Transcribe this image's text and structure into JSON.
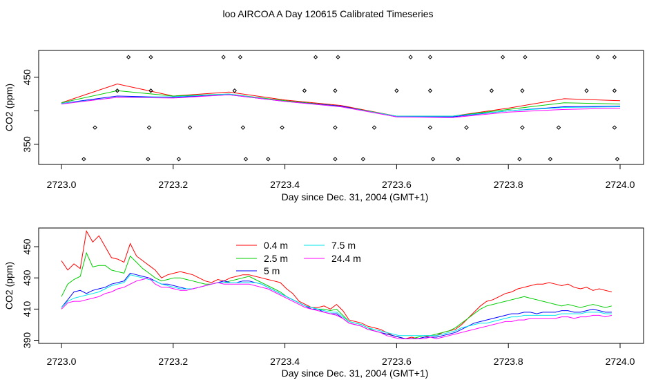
{
  "title": "loo AIRCOA A  Day 120615  Calibrated Timeseries",
  "colors": {
    "0.4 m": "#ff0000",
    "2.5 m": "#00cd00",
    "5 m": "#0000ff",
    "7.5 m": "#00e5ee",
    "24.4 m": "#ff00ff"
  },
  "chart_data": [
    {
      "type": "line",
      "xlabel": "Day since Dec. 31, 2004 (GMT+1)",
      "ylabel": "CO2 (ppm)",
      "xlim": [
        2723.0,
        2724.0
      ],
      "ylim": [
        320,
        490
      ],
      "xticks": [
        "2723.0",
        "2723.2",
        "2723.4",
        "2723.6",
        "2723.8",
        "2724.0"
      ],
      "yticks": [
        "350",
        "",
        "450"
      ],
      "ytick_values": [
        350,
        400,
        450
      ],
      "series": [
        {
          "name": "0.4 m",
          "x": [
            2723.0,
            2723.1,
            2723.2,
            2723.3,
            2723.4,
            2723.5,
            2723.6,
            2723.7,
            2723.8,
            2723.9,
            2724.0
          ],
          "y": [
            412,
            440,
            422,
            428,
            416,
            408,
            392,
            392,
            404,
            418,
            415
          ]
        },
        {
          "name": "2.5 m",
          "x": [
            2723.0,
            2723.1,
            2723.2,
            2723.3,
            2723.4,
            2723.5,
            2723.6,
            2723.7,
            2723.8,
            2723.9,
            2724.0
          ],
          "y": [
            412,
            430,
            422,
            425,
            415,
            407,
            392,
            392,
            402,
            412,
            410
          ]
        },
        {
          "name": "5 m",
          "x": [
            2723.0,
            2723.1,
            2723.2,
            2723.3,
            2723.4,
            2723.5,
            2723.6,
            2723.7,
            2723.8,
            2723.9,
            2724.0
          ],
          "y": [
            411,
            422,
            420,
            424,
            414,
            407,
            391,
            391,
            400,
            406,
            407
          ]
        },
        {
          "name": "7.5 m",
          "x": [
            2723.0,
            2723.1,
            2723.2,
            2723.3,
            2723.4,
            2723.5,
            2723.6,
            2723.7,
            2723.8,
            2723.9,
            2724.0
          ],
          "y": [
            411,
            420,
            421,
            425,
            414,
            406,
            392,
            392,
            400,
            405,
            406
          ]
        },
        {
          "name": "24.4 m",
          "x": [
            2723.0,
            2723.1,
            2723.2,
            2723.3,
            2723.4,
            2723.5,
            2723.6,
            2723.7,
            2723.8,
            2723.9,
            2724.0
          ],
          "y": [
            410,
            420,
            419,
            424,
            414,
            406,
            391,
            390,
            398,
            402,
            404
          ]
        }
      ],
      "flag_points": [
        {
          "x": 2723.04,
          "y": 328
        },
        {
          "x": 2723.06,
          "y": 375
        },
        {
          "x": 2723.1,
          "y": 430
        },
        {
          "x": 2723.12,
          "y": 480
        },
        {
          "x": 2723.155,
          "y": 328
        },
        {
          "x": 2723.157,
          "y": 375
        },
        {
          "x": 2723.16,
          "y": 430
        },
        {
          "x": 2723.16,
          "y": 480
        },
        {
          "x": 2723.21,
          "y": 328
        },
        {
          "x": 2723.23,
          "y": 375
        },
        {
          "x": 2723.29,
          "y": 480
        },
        {
          "x": 2723.31,
          "y": 430
        },
        {
          "x": 2723.32,
          "y": 480
        },
        {
          "x": 2723.325,
          "y": 375
        },
        {
          "x": 2723.33,
          "y": 328
        },
        {
          "x": 2723.37,
          "y": 328
        },
        {
          "x": 2723.395,
          "y": 375
        },
        {
          "x": 2723.435,
          "y": 430
        },
        {
          "x": 2723.455,
          "y": 480
        },
        {
          "x": 2723.49,
          "y": 328
        },
        {
          "x": 2723.49,
          "y": 375
        },
        {
          "x": 2723.49,
          "y": 430
        },
        {
          "x": 2723.495,
          "y": 480
        },
        {
          "x": 2723.54,
          "y": 328
        },
        {
          "x": 2723.56,
          "y": 375
        },
        {
          "x": 2723.6,
          "y": 430
        },
        {
          "x": 2723.625,
          "y": 480
        },
        {
          "x": 2723.66,
          "y": 480
        },
        {
          "x": 2723.66,
          "y": 430
        },
        {
          "x": 2723.66,
          "y": 375
        },
        {
          "x": 2723.665,
          "y": 328
        },
        {
          "x": 2723.71,
          "y": 328
        },
        {
          "x": 2723.725,
          "y": 375
        },
        {
          "x": 2723.77,
          "y": 430
        },
        {
          "x": 2723.79,
          "y": 480
        },
        {
          "x": 2723.82,
          "y": 328
        },
        {
          "x": 2723.825,
          "y": 375
        },
        {
          "x": 2723.825,
          "y": 430
        },
        {
          "x": 2723.83,
          "y": 480
        },
        {
          "x": 2723.875,
          "y": 328
        },
        {
          "x": 2723.89,
          "y": 375
        },
        {
          "x": 2723.94,
          "y": 430
        },
        {
          "x": 2723.96,
          "y": 480
        },
        {
          "x": 2723.99,
          "y": 480
        },
        {
          "x": 2723.99,
          "y": 430
        },
        {
          "x": 2723.99,
          "y": 375
        },
        {
          "x": 2723.995,
          "y": 328
        }
      ]
    },
    {
      "type": "line",
      "xlabel": "Day since Dec. 31, 2004 (GMT+1)",
      "ylabel": "CO2 (ppm)",
      "xlim": [
        2723.0,
        2724.0
      ],
      "ylim": [
        388,
        462
      ],
      "xticks": [
        "2723.0",
        "2723.2",
        "2723.4",
        "2723.6",
        "2723.8",
        "2724.0"
      ],
      "yticks": [
        "390",
        "410",
        "430",
        "450"
      ],
      "ytick_values": [
        390,
        410,
        430,
        450
      ],
      "legend": {
        "placement": "top-center",
        "entries": [
          "0.4 m",
          "2.5 m",
          "5 m",
          "7.5 m",
          "24.4 m"
        ]
      },
      "series": [
        {
          "name": "0.4 m",
          "y": [
            441,
            435,
            439,
            436,
            460,
            453,
            457,
            450,
            443,
            442,
            440,
            452,
            444,
            441,
            438,
            435,
            430,
            432,
            433,
            434,
            433,
            432,
            430,
            428,
            427,
            429,
            428,
            430,
            431,
            432,
            432,
            431,
            430,
            429,
            428,
            427,
            423,
            420,
            415,
            413,
            411,
            411,
            412,
            410,
            413,
            409,
            403,
            402,
            401,
            399,
            398,
            397,
            395,
            393,
            392,
            391,
            392,
            391,
            392,
            393,
            393,
            395,
            396,
            397,
            400,
            404,
            408,
            412,
            415,
            416,
            418,
            420,
            421,
            423,
            424,
            425,
            426,
            426,
            427,
            426,
            425,
            426,
            424,
            423,
            424,
            422,
            423,
            422,
            421
          ]
        },
        {
          "name": "2.5 m",
          "y": [
            418,
            426,
            429,
            431,
            446,
            437,
            438,
            438,
            435,
            434,
            433,
            444,
            440,
            436,
            433,
            430,
            428,
            429,
            430,
            430,
            429,
            428,
            427,
            426,
            426,
            427,
            427,
            428,
            429,
            430,
            431,
            429,
            427,
            425,
            423,
            421,
            418,
            416,
            414,
            412,
            411,
            410,
            410,
            409,
            410,
            406,
            402,
            401,
            400,
            398,
            396,
            395,
            394,
            393,
            392,
            391,
            391,
            392,
            393,
            393,
            394,
            395,
            396,
            398,
            401,
            404,
            407,
            410,
            412,
            413,
            414,
            415,
            416,
            417,
            418,
            417,
            416,
            415,
            414,
            413,
            412,
            413,
            412,
            411,
            412,
            413,
            412,
            411,
            412
          ]
        },
        {
          "name": "5 m",
          "y": [
            411,
            416,
            421,
            422,
            420,
            422,
            423,
            424,
            426,
            427,
            428,
            433,
            432,
            431,
            430,
            428,
            426,
            426,
            425,
            424,
            423,
            423,
            424,
            425,
            426,
            427,
            428,
            427,
            427,
            428,
            428,
            427,
            426,
            424,
            422,
            420,
            418,
            416,
            414,
            412,
            410,
            410,
            408,
            407,
            407,
            404,
            401,
            400,
            399,
            397,
            396,
            395,
            394,
            393,
            392,
            391,
            391,
            391,
            392,
            392,
            392,
            393,
            394,
            395,
            397,
            399,
            401,
            402,
            403,
            404,
            405,
            406,
            407,
            407,
            408,
            408,
            407,
            408,
            408,
            408,
            409,
            409,
            408,
            408,
            409,
            410,
            409,
            408,
            408
          ]
        },
        {
          "name": "7.5 m",
          "y": [
            411,
            415,
            417,
            418,
            419,
            420,
            421,
            423,
            425,
            426,
            427,
            432,
            431,
            430,
            429,
            428,
            426,
            425,
            424,
            423,
            423,
            423,
            424,
            425,
            426,
            427,
            427,
            427,
            427,
            427,
            427,
            427,
            426,
            424,
            422,
            420,
            418,
            416,
            414,
            412,
            411,
            410,
            409,
            408,
            408,
            405,
            402,
            401,
            400,
            398,
            397,
            396,
            395,
            394,
            393,
            393,
            393,
            393,
            393,
            393,
            393,
            394,
            395,
            396,
            398,
            399,
            400,
            401,
            401,
            402,
            403,
            404,
            405,
            405,
            406,
            406,
            406,
            406,
            406,
            406,
            407,
            407,
            407,
            407,
            408,
            408,
            408,
            407,
            407
          ]
        },
        {
          "name": "24.4 m",
          "y": [
            410,
            414,
            415,
            415,
            416,
            417,
            418,
            420,
            421,
            423,
            424,
            426,
            428,
            429,
            430,
            426,
            424,
            424,
            423,
            422,
            422,
            423,
            424,
            425,
            426,
            427,
            426,
            426,
            426,
            426,
            426,
            425,
            424,
            423,
            421,
            419,
            417,
            415,
            413,
            411,
            410,
            409,
            408,
            407,
            406,
            404,
            401,
            400,
            399,
            397,
            396,
            395,
            393,
            392,
            391,
            391,
            391,
            391,
            391,
            392,
            391,
            392,
            393,
            394,
            395,
            396,
            397,
            398,
            399,
            400,
            401,
            402,
            402,
            403,
            403,
            404,
            404,
            404,
            404,
            404,
            405,
            405,
            404,
            405,
            405,
            406,
            406,
            405,
            406
          ]
        }
      ]
    }
  ]
}
